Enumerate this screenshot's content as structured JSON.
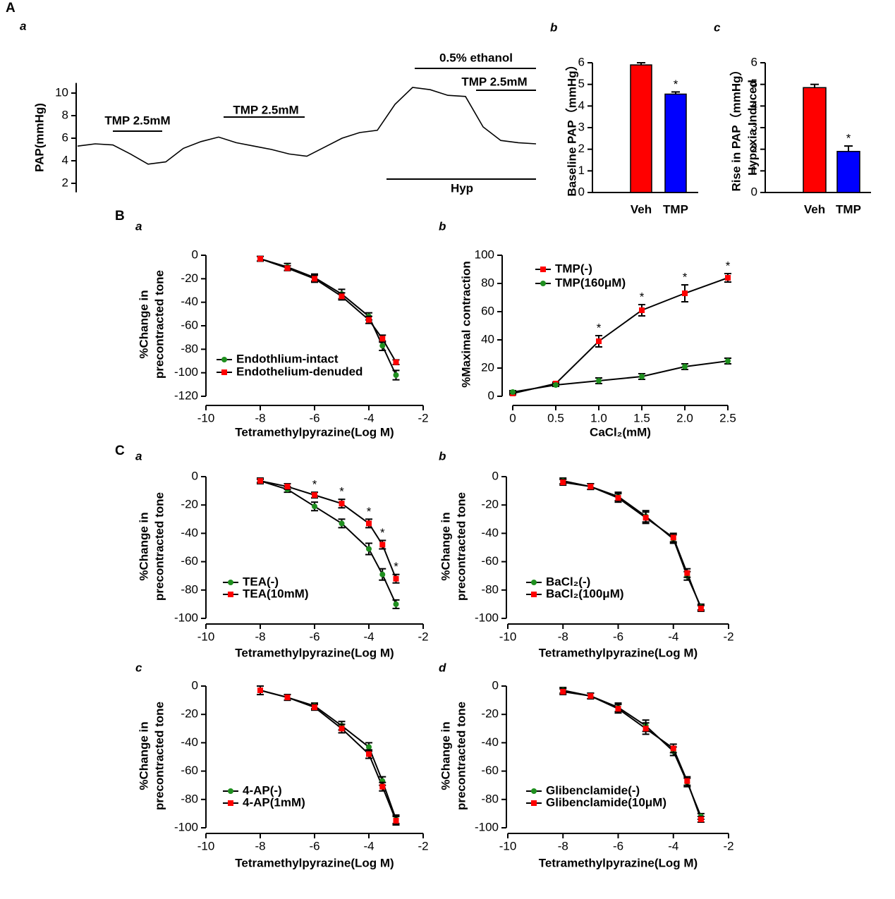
{
  "section_labels": [
    "A",
    "B",
    "C"
  ],
  "chart_data": [
    {
      "type": "trace",
      "label": "a",
      "ylabel": "PAP(mmHg)",
      "ylim": [
        1.2,
        10.9
      ],
      "yticks": [
        2,
        4,
        6,
        8,
        10
      ],
      "color": "#000000",
      "values": [
        5.3,
        5.5,
        5.4,
        4.6,
        3.7,
        3.9,
        5.1,
        5.7,
        6.1,
        5.6,
        5.3,
        5.0,
        4.6,
        4.4,
        5.2,
        6.0,
        6.5,
        6.7,
        9.0,
        10.5,
        10.3,
        9.8,
        9.7,
        7.0,
        5.8,
        5.6,
        5.5
      ],
      "annotations": [
        "TMP 2.5mM",
        "TMP 2.5mM",
        "0.5% ethanol",
        "TMP 2.5mM",
        "Hyp"
      ]
    },
    {
      "type": "bar",
      "label": "b",
      "ylabel": "Baseline PAP（mmHg）",
      "ylim": [
        0,
        6
      ],
      "yticks": [
        0,
        1,
        2,
        3,
        4,
        5,
        6
      ],
      "categories": [
        "Veh",
        "TMP"
      ],
      "values": [
        5.9,
        4.55
      ],
      "errors": [
        0.1,
        0.1
      ],
      "colors": [
        "#ff0000",
        "#0000ff"
      ],
      "significance": [
        null,
        "*"
      ]
    },
    {
      "type": "bar",
      "label": "c",
      "ylabel": [
        "Rise in PAP（mmHg）",
        "Hypoxia Induced"
      ],
      "ylim": [
        0,
        6
      ],
      "yticks": [
        0,
        1,
        2,
        3,
        4,
        5,
        6
      ],
      "categories": [
        "Veh",
        "TMP"
      ],
      "values": [
        4.85,
        1.9
      ],
      "errors": [
        0.15,
        0.25
      ],
      "colors": [
        "#ff0000",
        "#0000ff"
      ],
      "significance": [
        null,
        "*"
      ]
    },
    {
      "type": "line",
      "label": "a",
      "ylabel": [
        "%Change in",
        "precontracted tone"
      ],
      "xlabel": "Tetramethylpyrazine(Log M)",
      "xlim": [
        -10,
        -2
      ],
      "xticks": [
        -10,
        -8,
        -6,
        -4,
        -2
      ],
      "ylim": [
        -120,
        0
      ],
      "yticks": [
        0,
        -20,
        -40,
        -60,
        -80,
        -100,
        -120
      ],
      "x": [
        -8,
        -7,
        -6,
        -5,
        -4,
        -3.5,
        -3
      ],
      "series": [
        {
          "name": "Endothlium-intact",
          "color": "#1f8f1f",
          "marker": "circle",
          "values": [
            -3,
            -10,
            -19,
            -33,
            -52,
            -77,
            -102
          ],
          "errors": [
            2,
            3,
            3,
            4,
            3,
            4,
            4
          ]
        },
        {
          "name": "Endothelium-denuded",
          "color": "#ff0000",
          "marker": "square",
          "values": [
            -3,
            -11,
            -20,
            -35,
            -55,
            -71,
            -91
          ],
          "errors": [
            2,
            2,
            3,
            3,
            3,
            3,
            2
          ]
        }
      ]
    },
    {
      "type": "line",
      "label": "b",
      "ylabel": "%Maximal contraction",
      "xlabel": "CaCl₂(mM)",
      "xlim": [
        0,
        2.5
      ],
      "xticks": [
        0,
        0.5,
        {
          "value": 1,
          "label": "1.0"
        },
        1.5,
        {
          "value": 2,
          "label": "2.0"
        },
        2.5
      ],
      "ylim": [
        0,
        100
      ],
      "yticks": [
        0,
        20,
        40,
        60,
        80,
        100
      ],
      "x": [
        0,
        0.5,
        1,
        1.5,
        2,
        2.5
      ],
      "series": [
        {
          "name": "TMP(-)",
          "color": "#ff0000",
          "marker": "square",
          "values": [
            2,
            9,
            39,
            61,
            73,
            84
          ],
          "errors": [
            1,
            1,
            4,
            4,
            6,
            3
          ],
          "significance": [
            null,
            null,
            "*",
            "*",
            "*",
            "*"
          ]
        },
        {
          "name": "TMP(160μM)",
          "color": "#1f8f1f",
          "marker": "circle",
          "values": [
            3,
            8,
            11,
            14,
            21,
            25
          ],
          "errors": [
            1,
            1,
            2,
            2,
            2,
            2
          ]
        }
      ]
    },
    {
      "type": "line",
      "label": "a",
      "ylabel": [
        "%Change in",
        "precontracted tone"
      ],
      "xlabel": "Tetramethylpyrazine(Log M)",
      "xlim": [
        -10,
        -2
      ],
      "xticks": [
        -10,
        -8,
        -6,
        -4,
        -2
      ],
      "ylim": [
        -100,
        0
      ],
      "yticks": [
        0,
        -20,
        -40,
        -60,
        -80,
        -100
      ],
      "x": [
        -8,
        -7,
        -6,
        -5,
        -4,
        -3.5,
        -3
      ],
      "series": [
        {
          "name": "TEA(-)",
          "color": "#1f8f1f",
          "marker": "circle",
          "values": [
            -3,
            -9,
            -21,
            -33,
            -51,
            -69,
            -90
          ],
          "errors": [
            2,
            2,
            3,
            3,
            4,
            4,
            3
          ]
        },
        {
          "name": "TEA(10mM)",
          "color": "#ff0000",
          "marker": "square",
          "values": [
            -3,
            -7,
            -13,
            -19,
            -33,
            -48,
            -72
          ],
          "errors": [
            1,
            2,
            2,
            3,
            3,
            3,
            3
          ],
          "significance": [
            null,
            null,
            "*",
            "*",
            "*",
            "*",
            "*"
          ]
        }
      ]
    },
    {
      "type": "line",
      "label": "b",
      "ylabel": [
        "%Change in",
        "precontracted tone"
      ],
      "xlabel": "Tetramethylpyrazine(Log M)",
      "xlim": [
        -10,
        -2
      ],
      "xticks": [
        -10,
        -8,
        -6,
        -4,
        -2
      ],
      "ylim": [
        -100,
        0
      ],
      "yticks": [
        0,
        -20,
        -40,
        -60,
        -80,
        -100
      ],
      "x": [
        -8,
        -7,
        -6,
        -5,
        -4,
        -3.5,
        -3
      ],
      "series": [
        {
          "name": "BaCl₂(-)",
          "color": "#1f8f1f",
          "marker": "circle",
          "values": [
            -3,
            -7,
            -14,
            -28,
            -44,
            -70,
            -92
          ],
          "errors": [
            2,
            2,
            3,
            4,
            3,
            3,
            2
          ]
        },
        {
          "name": "BaCl₂(100μM)",
          "color": "#ff0000",
          "marker": "square",
          "values": [
            -4,
            -7,
            -15,
            -29,
            -43,
            -68,
            -93
          ],
          "errors": [
            2,
            2,
            3,
            4,
            3,
            3,
            2
          ]
        }
      ]
    },
    {
      "type": "line",
      "label": "c",
      "ylabel": [
        "%Change in",
        "precontracted tone"
      ],
      "xlabel": "Tetramethylpyrazine(Log M)",
      "xlim": [
        -10,
        -2
      ],
      "xticks": [
        -10,
        -8,
        -6,
        -4,
        -2
      ],
      "ylim": [
        -100,
        0
      ],
      "yticks": [
        0,
        -20,
        -40,
        -60,
        -80,
        -100
      ],
      "x": [
        -8,
        -7,
        -6,
        -5,
        -4,
        -3.5,
        -3
      ],
      "series": [
        {
          "name": "4-AP(-)",
          "color": "#1f8f1f",
          "marker": "circle",
          "values": [
            -3,
            -8,
            -14,
            -28,
            -43,
            -67,
            -94
          ],
          "errors": [
            3,
            2,
            2,
            3,
            3,
            3,
            3
          ]
        },
        {
          "name": "4-AP(1mM)",
          "color": "#ff0000",
          "marker": "square",
          "values": [
            -3,
            -8,
            -15,
            -30,
            -48,
            -71,
            -95
          ],
          "errors": [
            3,
            2,
            2,
            3,
            3,
            3,
            3
          ]
        }
      ]
    },
    {
      "type": "line",
      "label": "d",
      "ylabel": [
        "%Change in",
        "precontracted tone"
      ],
      "xlabel": "Tetramethylpyrazine(Log M)",
      "xlim": [
        -10,
        -2
      ],
      "xticks": [
        -10,
        -8,
        -6,
        -4,
        -2
      ],
      "ylim": [
        -100,
        0
      ],
      "yticks": [
        0,
        -20,
        -40,
        -60,
        -80,
        -100
      ],
      "x": [
        -8,
        -7,
        -6,
        -5,
        -4,
        -3.5,
        -3
      ],
      "series": [
        {
          "name": "Glibenclamide(-)",
          "color": "#1f8f1f",
          "marker": "circle",
          "values": [
            -3,
            -7,
            -15,
            -28,
            -46,
            -68,
            -92
          ],
          "errors": [
            2,
            2,
            3,
            4,
            3,
            3,
            2
          ]
        },
        {
          "name": "Glibenclamide(10μM)",
          "color": "#ff0000",
          "marker": "square",
          "values": [
            -4,
            -7,
            -16,
            -30,
            -44,
            -67,
            -94
          ],
          "errors": [
            2,
            2,
            3,
            4,
            3,
            3,
            2
          ]
        }
      ]
    }
  ]
}
